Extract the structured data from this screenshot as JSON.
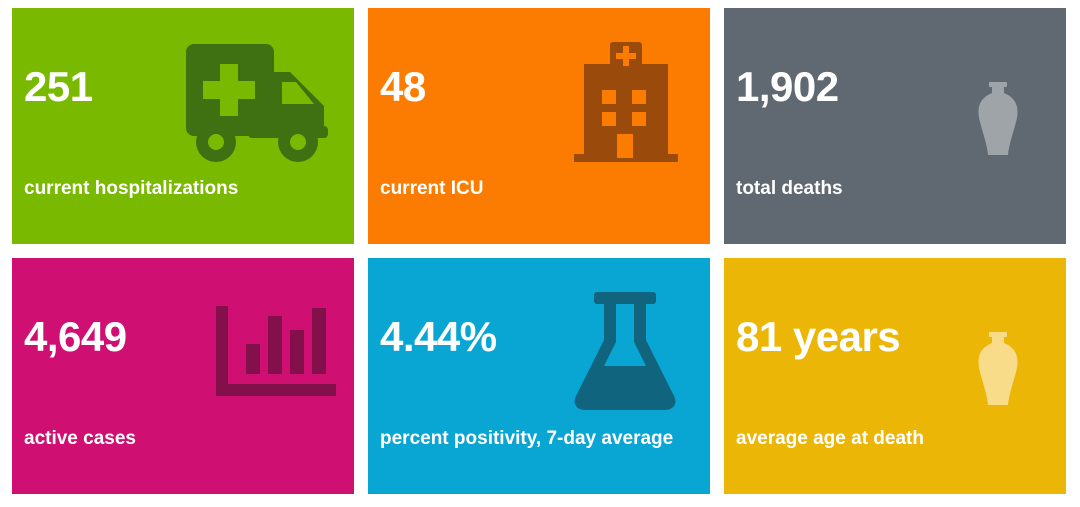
{
  "tiles": [
    {
      "value": "251",
      "label": "current hospitalizations",
      "icon": "ambulance-icon",
      "bg": "#79b900",
      "icon_color": "#3f7012"
    },
    {
      "value": "48",
      "label": "current ICU",
      "icon": "hospital-building-icon",
      "bg": "#fb7c00",
      "icon_color": "#9a4a0a"
    },
    {
      "value": "1,902",
      "label": "total deaths",
      "icon": "urn-icon",
      "bg": "#606971",
      "icon_color": "#9ea4a8"
    },
    {
      "value": "4,649",
      "label": "active cases",
      "icon": "bar-chart-icon",
      "bg": "#cf0f72",
      "icon_color": "#83104b"
    },
    {
      "value": "4.44%",
      "label": "percent positivity, 7-day average",
      "icon": "flask-icon",
      "bg": "#0aa6d3",
      "icon_color": "#11647e"
    },
    {
      "value": "81 years",
      "label": "average age at death",
      "icon": "urn-icon",
      "bg": "#ecb606",
      "icon_color": "#f8dc8a"
    }
  ]
}
